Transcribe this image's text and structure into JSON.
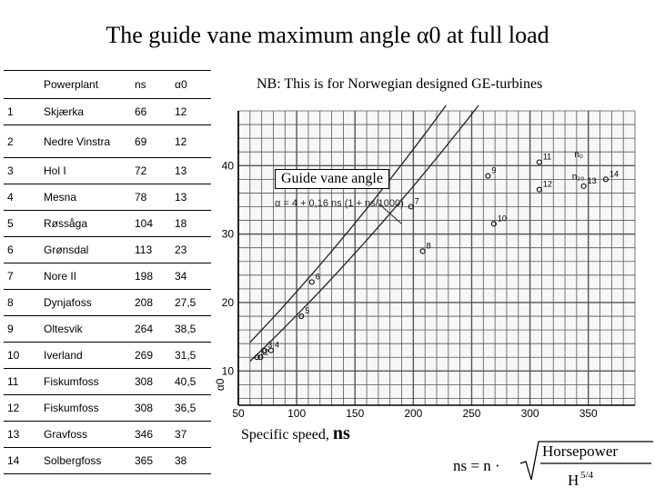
{
  "title": "The guide vane maximum angle α0 at full load",
  "note": "NB: This is for Norwegian designed GE-turbines",
  "table": {
    "headers": [
      "",
      "Powerplant",
      "ns",
      "α0"
    ],
    "rows": [
      [
        "1",
        "Skjærka",
        "66",
        "12"
      ],
      [
        "2",
        "Nedre Vinstra",
        "69",
        "12"
      ],
      [
        "3",
        "Hol I",
        "72",
        "13"
      ],
      [
        "4",
        "Mesna",
        "78",
        "13"
      ],
      [
        "5",
        "Røssåga",
        "104",
        "18"
      ],
      [
        "6",
        "Grønsdal",
        "113",
        "23"
      ],
      [
        "7",
        "Nore II",
        "198",
        "34"
      ],
      [
        "8",
        "Dynjafoss",
        "208",
        "27,5"
      ],
      [
        "9",
        "Oltesvik",
        "264",
        "38,5"
      ],
      [
        "10",
        "Iverland",
        "269",
        "31,5"
      ],
      [
        "11",
        "Fiskumfoss",
        "308",
        "40,5"
      ],
      [
        "12",
        "Fiskumfoss",
        "308",
        "36,5"
      ],
      [
        "13",
        "Gravfoss",
        "346",
        "37"
      ],
      [
        "14",
        "Solbergfoss",
        "365",
        "38"
      ]
    ]
  },
  "chart_data": {
    "type": "scatter",
    "guide_label": "Guide vane angle",
    "formula": "α = 4 + 0,16 ns (1 + ns/1000)",
    "xlabel": "Specific speed,",
    "xlabel_symbol": "ns",
    "ylabel": "α0",
    "xlim": [
      50,
      390
    ],
    "ylim": [
      5,
      48
    ],
    "xticks": [
      "50",
      "100",
      "150",
      "200",
      "250",
      "300",
      "350"
    ],
    "yticks": [
      "10",
      "20",
      "30",
      "40"
    ],
    "grid": true,
    "points": [
      {
        "label": "1",
        "x": 66,
        "y": 12
      },
      {
        "label": "2",
        "x": 69,
        "y": 12
      },
      {
        "label": "3",
        "x": 72,
        "y": 13
      },
      {
        "label": "4",
        "x": 78,
        "y": 13
      },
      {
        "label": "5",
        "x": 104,
        "y": 18
      },
      {
        "label": "6",
        "x": 113,
        "y": 23
      },
      {
        "label": "7",
        "x": 198,
        "y": 34
      },
      {
        "label": "8",
        "x": 208,
        "y": 27.5
      },
      {
        "label": "9",
        "x": 264,
        "y": 38.5
      },
      {
        "label": "10",
        "x": 269,
        "y": 31.5
      },
      {
        "label": "11",
        "x": 308,
        "y": 40.5
      },
      {
        "label": "12",
        "x": 308,
        "y": 36.5
      },
      {
        "label": "13",
        "x": 346,
        "y": 37
      },
      {
        "label": "14",
        "x": 365,
        "y": 38
      }
    ],
    "curve_labels": [
      "n₀",
      "n₂₀"
    ]
  },
  "ns_definition": {
    "lhs": "ns = n ·",
    "numerator": "Horsepower",
    "denominator": "H",
    "exponent": "5/4"
  }
}
